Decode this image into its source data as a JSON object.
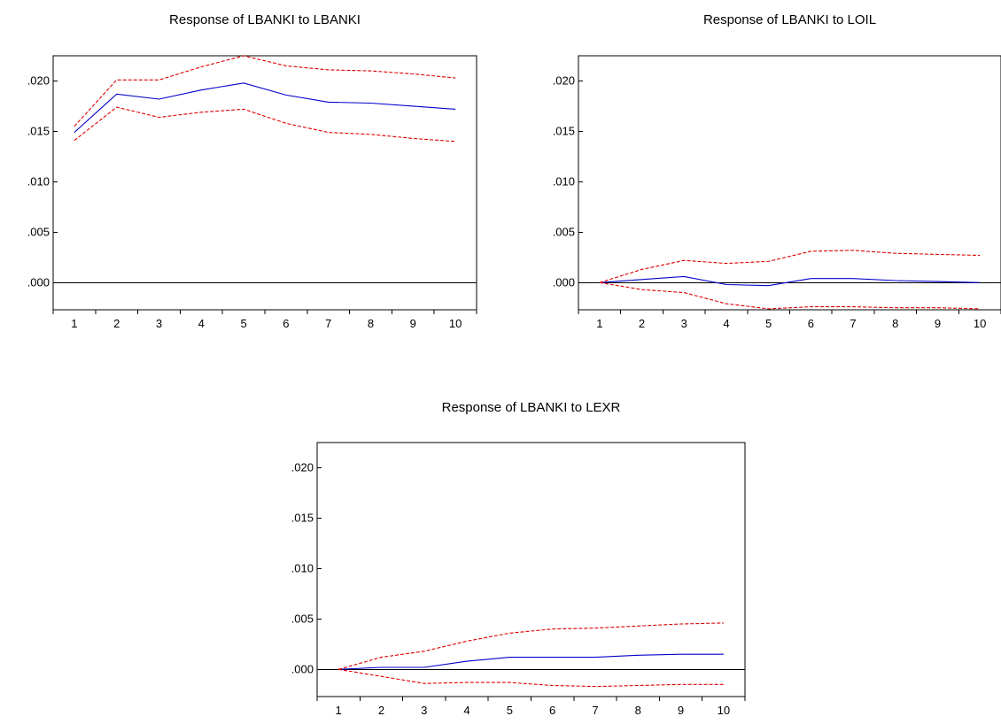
{
  "chart_data": [
    {
      "type": "line",
      "title": "Response of LBANKI to LBANKI",
      "x": [
        1,
        2,
        3,
        4,
        5,
        6,
        7,
        8,
        9,
        10
      ],
      "x_tick_labels": [
        "1",
        "2",
        "3",
        "4",
        "5",
        "6",
        "7",
        "8",
        "9",
        "10"
      ],
      "y_tick_labels": [
        ".000",
        ".005",
        ".010",
        ".015",
        ".020"
      ],
      "y_ticks": [
        0,
        0.005,
        0.01,
        0.015,
        0.02
      ],
      "ylim": [
        -0.0027,
        0.0225
      ],
      "zero_line": true,
      "grid": false,
      "series": [
        {
          "values": [
            0.0149,
            0.0187,
            0.0182,
            0.0191,
            0.0198,
            0.0186,
            0.0179,
            0.0178,
            0.0175,
            0.0172
          ],
          "color": "#0000cc",
          "style": "solid"
        },
        {
          "values": [
            0.0155,
            0.0201,
            0.0201,
            0.0214,
            0.0225,
            0.0215,
            0.0211,
            0.021,
            0.0207,
            0.0203
          ],
          "color": "#dd0000",
          "style": "dashed"
        },
        {
          "values": [
            0.0141,
            0.0174,
            0.0164,
            0.0169,
            0.0172,
            0.0158,
            0.0149,
            0.0147,
            0.0143,
            0.014
          ],
          "color": "#dd0000",
          "style": "dashed"
        }
      ]
    },
    {
      "type": "line",
      "title": "Response of LBANKI to LOIL",
      "x": [
        1,
        2,
        3,
        4,
        5,
        6,
        7,
        8,
        9,
        10
      ],
      "x_tick_labels": [
        "1",
        "2",
        "3",
        "4",
        "5",
        "6",
        "7",
        "8",
        "9",
        "10"
      ],
      "y_tick_labels": [
        ".000",
        ".005",
        ".010",
        ".015",
        ".020"
      ],
      "y_ticks": [
        0,
        0.005,
        0.01,
        0.015,
        0.02
      ],
      "ylim": [
        -0.0027,
        0.0225
      ],
      "zero_line": true,
      "grid": false,
      "series": [
        {
          "values": [
            0.0,
            0.0003,
            0.0006,
            -0.0002,
            -0.0003,
            0.0004,
            0.0004,
            0.0002,
            0.0001,
            0.0
          ],
          "color": "#0000cc",
          "style": "solid"
        },
        {
          "values": [
            0.0,
            0.0013,
            0.0022,
            0.0019,
            0.0021,
            0.0031,
            0.0032,
            0.0029,
            0.0028,
            0.0027
          ],
          "color": "#dd0000",
          "style": "dashed"
        },
        {
          "values": [
            0.0,
            -0.0007,
            -0.001,
            -0.0021,
            -0.0026,
            -0.0024,
            -0.0024,
            -0.0025,
            -0.0025,
            -0.0026
          ],
          "color": "#dd0000",
          "style": "dashed"
        }
      ]
    },
    {
      "type": "line",
      "title": "Response of LBANKI to LEXR",
      "x": [
        1,
        2,
        3,
        4,
        5,
        6,
        7,
        8,
        9,
        10
      ],
      "x_tick_labels": [
        "1",
        "2",
        "3",
        "4",
        "5",
        "6",
        "7",
        "8",
        "9",
        "10"
      ],
      "y_tick_labels": [
        ".000",
        ".005",
        ".010",
        ".015",
        ".020"
      ],
      "y_ticks": [
        0,
        0.005,
        0.01,
        0.015,
        0.02
      ],
      "ylim": [
        -0.0027,
        0.0225
      ],
      "zero_line": true,
      "grid": false,
      "series": [
        {
          "values": [
            0.0,
            0.0002,
            0.0002,
            0.0008,
            0.0012,
            0.0012,
            0.0012,
            0.0014,
            0.0015,
            0.0015
          ],
          "color": "#0000cc",
          "style": "solid"
        },
        {
          "values": [
            0.0,
            0.0012,
            0.0018,
            0.0028,
            0.0036,
            0.004,
            0.0041,
            0.0043,
            0.0045,
            0.0046
          ],
          "color": "#dd0000",
          "style": "dashed"
        },
        {
          "values": [
            0.0,
            -0.0007,
            -0.0014,
            -0.0013,
            -0.0013,
            -0.0016,
            -0.0017,
            -0.0016,
            -0.0015,
            -0.0015
          ],
          "color": "#dd0000",
          "style": "dashed"
        }
      ]
    }
  ]
}
